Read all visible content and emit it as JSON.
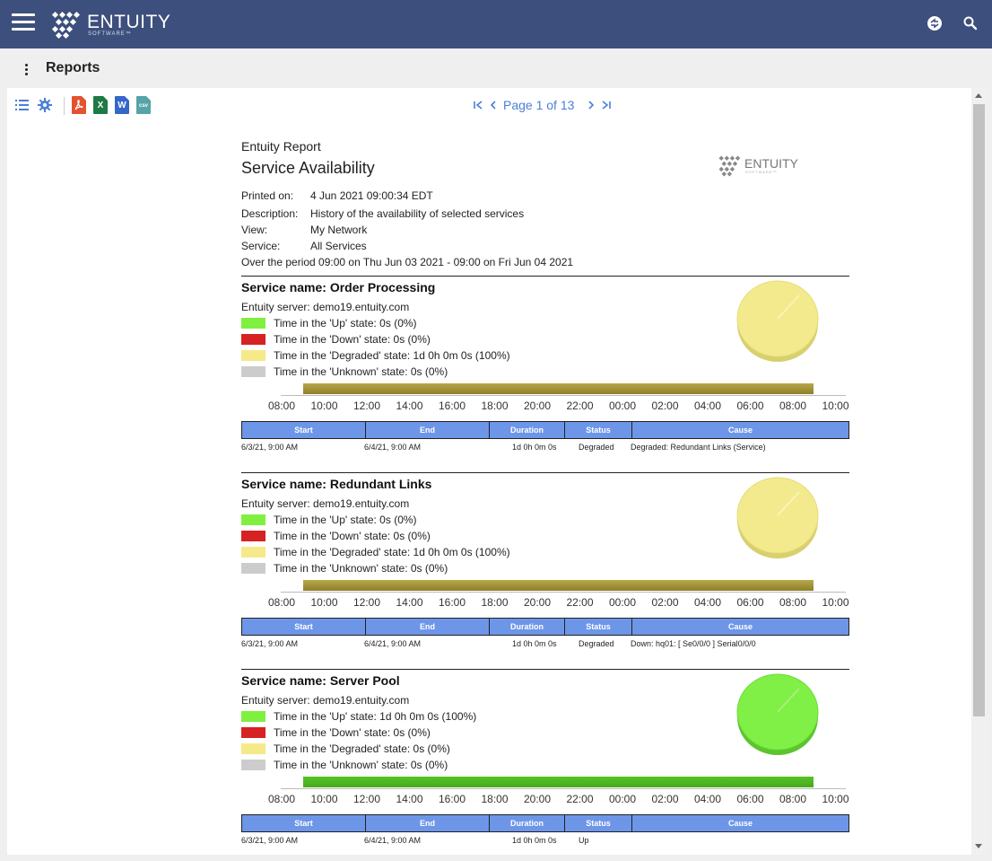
{
  "header": {
    "brand": "ENTUITY",
    "brand_sub": "SOFTWARE™",
    "icons": [
      "menu-icon",
      "logo-icon",
      "user-switch-icon",
      "search-icon"
    ]
  },
  "subheader": {
    "title": "Reports"
  },
  "toolbar": {
    "files": [
      {
        "name": "pdf",
        "label": "",
        "color": "#e4522e"
      },
      {
        "name": "excel",
        "label": "X",
        "color": "#1d7a44"
      },
      {
        "name": "word",
        "label": "W",
        "color": "#3467c8"
      },
      {
        "name": "csv",
        "label": "csv",
        "color": "#56a3a8"
      }
    ]
  },
  "pager": {
    "label": "Page 1 of 13"
  },
  "report": {
    "kicker": "Entuity Report",
    "title": "Service Availability",
    "logo_text": "ENTUITY",
    "logo_sub": "SOFTWARE™",
    "meta": [
      {
        "key": "Printed on:",
        "value": "4 Jun 2021 09:00:34 EDT"
      },
      {
        "key": "Description:",
        "value": "History of the availability of selected services"
      },
      {
        "key": "View:",
        "value": "My Network"
      },
      {
        "key": "Service:",
        "value": "All Services"
      }
    ],
    "period": "Over the period 09:00 on Thu Jun 03 2021 - 09:00 on Fri Jun 04 2021",
    "colors": {
      "up": "#80f040",
      "down": "#d62222",
      "degraded": "#f5e98a",
      "unknown": "#cccccc",
      "header_blue": "#6d96e8"
    },
    "ticks": [
      "08:00",
      "10:00",
      "12:00",
      "14:00",
      "16:00",
      "18:00",
      "20:00",
      "22:00",
      "00:00",
      "02:00",
      "04:00",
      "06:00",
      "08:00",
      "10:00"
    ],
    "table_headers": [
      "Start",
      "End",
      "Duration",
      "Status",
      "Cause"
    ],
    "services": [
      {
        "name": "Service name: Order Processing",
        "server": "Entuity server: demo19.entuity.com",
        "legend": [
          "Time in the 'Up' state: 0s (0%)",
          "Time in the 'Down' state: 0s (0%)",
          "Time in the 'Degraded' state: 1d 0h 0m 0s (100%)",
          "Time in the 'Unknown' state: 0s (0%)"
        ],
        "state": "degraded",
        "pie_color": "#f2ea8c",
        "bar_color": "#b8a84a",
        "row": {
          "start": "6/3/21, 9:00 AM",
          "end": "6/4/21, 9:00 AM",
          "duration": "1d 0h 0m 0s",
          "status": "Degraded",
          "cause": "Degraded: Redundant Links (Service)"
        }
      },
      {
        "name": "Service name: Redundant Links",
        "server": "Entuity server: demo19.entuity.com",
        "legend": [
          "Time in the 'Up' state: 0s (0%)",
          "Time in the 'Down' state: 0s (0%)",
          "Time in the 'Degraded' state: 1d 0h 0m 0s (100%)",
          "Time in the 'Unknown' state: 0s (0%)"
        ],
        "state": "degraded",
        "pie_color": "#f2ea8c",
        "bar_color": "#b8a84a",
        "row": {
          "start": "6/3/21, 9:00 AM",
          "end": "6/4/21, 9:00 AM",
          "duration": "1d 0h 0m 0s",
          "status": "Degraded",
          "cause": "Down: hq01: [ Se0/0/0 ] Serial0/0/0"
        }
      },
      {
        "name": "Service name: Server Pool",
        "server": "Entuity server: demo19.entuity.com",
        "legend": [
          "Time in the 'Up' state: 1d 0h 0m 0s (100%)",
          "Time in the 'Down' state: 0s (0%)",
          "Time in the 'Degraded' state: 0s (0%)",
          "Time in the 'Unknown' state: 0s (0%)"
        ],
        "state": "up",
        "pie_color": "#80ef46",
        "bar_color": "#56c426",
        "row": {
          "start": "6/3/21, 9:00 AM",
          "end": "6/4/21, 9:00 AM",
          "duration": "1d 0h 0m 0s",
          "status": "Up",
          "cause": ""
        }
      }
    ]
  }
}
